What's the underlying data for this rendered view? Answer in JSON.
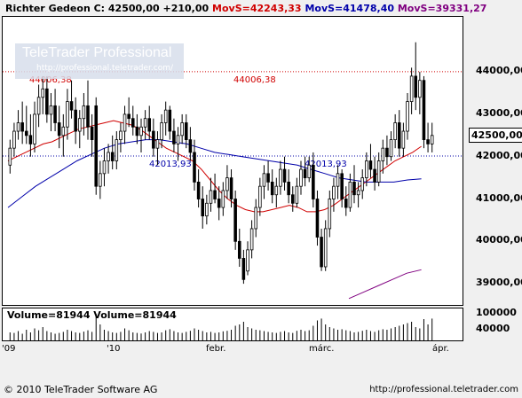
{
  "header": {
    "instrument": "Richter Gedeon C: 42500,00 +210,00",
    "mov1": "MovS=42243,33",
    "mov2": "MovS=41478,40",
    "mov3": "MovS=39331,27"
  },
  "watermark": {
    "title": "TeleTrader Professional",
    "url": "http://professional.teletrader.com/"
  },
  "volume_header": "Volume=81944  Volume=81944",
  "footer": {
    "copyright": "© 2010 TeleTrader Software AG",
    "url": "http://professional.teletrader.com"
  },
  "colors": {
    "up": "#ffffff",
    "down": "#000000",
    "mov1": "#d00000",
    "mov2": "#0000aa",
    "mov3": "#800080",
    "hline": "#d00000",
    "lline": "#0000aa"
  },
  "chart_data": {
    "type": "candlestick",
    "y_axis": {
      "ticks": [
        39000,
        40000,
        41000,
        42000,
        43000,
        44000
      ],
      "tick_labels": [
        "39000,00",
        "40000,00",
        "41000,00",
        "42000,00",
        "43000,00",
        "44000,00"
      ],
      "ylim": [
        38500,
        45300
      ]
    },
    "last_price": {
      "value": 42500,
      "label": "42500,00"
    },
    "x_axis": {
      "tick_labels": [
        "'09",
        "'10",
        "febr.",
        "márc.",
        "ápr."
      ]
    },
    "annotations": [
      {
        "type": "hline",
        "value": 44006.38,
        "label": "44006,38"
      },
      {
        "type": "hline",
        "value": 42013.93,
        "label": "42013,93"
      }
    ],
    "candles": [
      {
        "o": 41800,
        "h": 42400,
        "l": 41600,
        "c": 42200
      },
      {
        "o": 42200,
        "h": 42800,
        "l": 42000,
        "c": 42600
      },
      {
        "o": 42600,
        "h": 43100,
        "l": 42400,
        "c": 42800
      },
      {
        "o": 42800,
        "h": 43300,
        "l": 42300,
        "c": 42600
      },
      {
        "o": 42600,
        "h": 43200,
        "l": 42300,
        "c": 42500
      },
      {
        "o": 42500,
        "h": 43000,
        "l": 42000,
        "c": 42300
      },
      {
        "o": 42300,
        "h": 43300,
        "l": 42100,
        "c": 43000
      },
      {
        "o": 43000,
        "h": 43700,
        "l": 42700,
        "c": 43400
      },
      {
        "o": 43400,
        "h": 43900,
        "l": 43000,
        "c": 43600
      },
      {
        "o": 43600,
        "h": 43900,
        "l": 42800,
        "c": 43000
      },
      {
        "o": 43000,
        "h": 43500,
        "l": 42600,
        "c": 43200
      },
      {
        "o": 43200,
        "h": 43600,
        "l": 42600,
        "c": 42800
      },
      {
        "o": 42800,
        "h": 43200,
        "l": 42200,
        "c": 42500
      },
      {
        "o": 42500,
        "h": 43000,
        "l": 42000,
        "c": 42700
      },
      {
        "o": 42700,
        "h": 43600,
        "l": 42400,
        "c": 43300
      },
      {
        "o": 43300,
        "h": 43800,
        "l": 42900,
        "c": 43100
      },
      {
        "o": 43100,
        "h": 43400,
        "l": 42300,
        "c": 42600
      },
      {
        "o": 42600,
        "h": 43100,
        "l": 42200,
        "c": 42900
      },
      {
        "o": 42900,
        "h": 43500,
        "l": 42500,
        "c": 43200
      },
      {
        "o": 43200,
        "h": 43800,
        "l": 42400,
        "c": 42700
      },
      {
        "o": 42700,
        "h": 43000,
        "l": 42000,
        "c": 42400
      },
      {
        "o": 43200,
        "h": 43400,
        "l": 41100,
        "c": 41300
      },
      {
        "o": 41300,
        "h": 41900,
        "l": 41000,
        "c": 41600
      },
      {
        "o": 41600,
        "h": 42200,
        "l": 41300,
        "c": 41900
      },
      {
        "o": 41900,
        "h": 42300,
        "l": 41600,
        "c": 42100
      },
      {
        "o": 42100,
        "h": 42500,
        "l": 41700,
        "c": 41900
      },
      {
        "o": 41900,
        "h": 42600,
        "l": 41700,
        "c": 42400
      },
      {
        "o": 42400,
        "h": 42800,
        "l": 42100,
        "c": 42600
      },
      {
        "o": 42600,
        "h": 43200,
        "l": 42300,
        "c": 43000
      },
      {
        "o": 43000,
        "h": 43400,
        "l": 42700,
        "c": 42900
      },
      {
        "o": 42900,
        "h": 43200,
        "l": 42500,
        "c": 42700
      },
      {
        "o": 42700,
        "h": 43000,
        "l": 42300,
        "c": 42500
      },
      {
        "o": 42500,
        "h": 42900,
        "l": 42100,
        "c": 42700
      },
      {
        "o": 42700,
        "h": 43100,
        "l": 42400,
        "c": 42900
      },
      {
        "o": 42900,
        "h": 43200,
        "l": 42400,
        "c": 42600
      },
      {
        "o": 42600,
        "h": 42900,
        "l": 42000,
        "c": 42200
      },
      {
        "o": 42200,
        "h": 42600,
        "l": 41800,
        "c": 42400
      },
      {
        "o": 42400,
        "h": 43000,
        "l": 42200,
        "c": 42800
      },
      {
        "o": 42800,
        "h": 43300,
        "l": 42500,
        "c": 43100
      },
      {
        "o": 43100,
        "h": 43200,
        "l": 42400,
        "c": 42600
      },
      {
        "o": 42600,
        "h": 42900,
        "l": 42100,
        "c": 42300
      },
      {
        "o": 42300,
        "h": 42700,
        "l": 41900,
        "c": 42500
      },
      {
        "o": 42500,
        "h": 43000,
        "l": 42300,
        "c": 42800
      },
      {
        "o": 42800,
        "h": 43000,
        "l": 42200,
        "c": 42400
      },
      {
        "o": 42400,
        "h": 42700,
        "l": 41900,
        "c": 42100
      },
      {
        "o": 42100,
        "h": 42400,
        "l": 41200,
        "c": 41400
      },
      {
        "o": 41400,
        "h": 41700,
        "l": 40800,
        "c": 41000
      },
      {
        "o": 41000,
        "h": 41300,
        "l": 40300,
        "c": 40600
      },
      {
        "o": 40600,
        "h": 41100,
        "l": 40400,
        "c": 40900
      },
      {
        "o": 40900,
        "h": 41500,
        "l": 40700,
        "c": 41200
      },
      {
        "o": 41200,
        "h": 41600,
        "l": 40900,
        "c": 41000
      },
      {
        "o": 41000,
        "h": 41300,
        "l": 40500,
        "c": 40800
      },
      {
        "o": 40800,
        "h": 41400,
        "l": 40600,
        "c": 41200
      },
      {
        "o": 41200,
        "h": 41800,
        "l": 41000,
        "c": 41500
      },
      {
        "o": 41500,
        "h": 41700,
        "l": 40800,
        "c": 41000
      },
      {
        "o": 41000,
        "h": 41200,
        "l": 39800,
        "c": 40000
      },
      {
        "o": 40000,
        "h": 40300,
        "l": 39400,
        "c": 39600
      },
      {
        "o": 39600,
        "h": 39800,
        "l": 39000,
        "c": 39100
      },
      {
        "o": 39300,
        "h": 40000,
        "l": 39200,
        "c": 39800
      },
      {
        "o": 39800,
        "h": 40500,
        "l": 39600,
        "c": 40300
      },
      {
        "o": 40300,
        "h": 41000,
        "l": 40100,
        "c": 40800
      },
      {
        "o": 40800,
        "h": 41500,
        "l": 40600,
        "c": 41300
      },
      {
        "o": 41300,
        "h": 41800,
        "l": 41000,
        "c": 41600
      },
      {
        "o": 41600,
        "h": 41900,
        "l": 41200,
        "c": 41400
      },
      {
        "o": 41400,
        "h": 41700,
        "l": 40900,
        "c": 41100
      },
      {
        "o": 41100,
        "h": 41500,
        "l": 40800,
        "c": 41300
      },
      {
        "o": 41300,
        "h": 41900,
        "l": 41100,
        "c": 41700
      },
      {
        "o": 41700,
        "h": 42000,
        "l": 41200,
        "c": 41400
      },
      {
        "o": 41400,
        "h": 41700,
        "l": 40900,
        "c": 41100
      },
      {
        "o": 41100,
        "h": 41300,
        "l": 40700,
        "c": 40900
      },
      {
        "o": 40900,
        "h": 41500,
        "l": 40800,
        "c": 41300
      },
      {
        "o": 41300,
        "h": 41900,
        "l": 41100,
        "c": 41700
      },
      {
        "o": 41700,
        "h": 42000,
        "l": 41300,
        "c": 41500
      },
      {
        "o": 41500,
        "h": 42000,
        "l": 41400,
        "c": 41800
      },
      {
        "o": 41800,
        "h": 42100,
        "l": 40800,
        "c": 41000
      },
      {
        "o": 41000,
        "h": 41200,
        "l": 39900,
        "c": 40100
      },
      {
        "o": 40100,
        "h": 40300,
        "l": 39300,
        "c": 39400
      },
      {
        "o": 39400,
        "h": 40500,
        "l": 39300,
        "c": 40300
      },
      {
        "o": 40300,
        "h": 41200,
        "l": 40100,
        "c": 41000
      },
      {
        "o": 41000,
        "h": 41500,
        "l": 40700,
        "c": 41300
      },
      {
        "o": 41300,
        "h": 41800,
        "l": 41000,
        "c": 41600
      },
      {
        "o": 41600,
        "h": 41700,
        "l": 40800,
        "c": 41000
      },
      {
        "o": 41000,
        "h": 41300,
        "l": 40600,
        "c": 40800
      },
      {
        "o": 40800,
        "h": 41600,
        "l": 40700,
        "c": 41400
      },
      {
        "o": 41400,
        "h": 41800,
        "l": 40900,
        "c": 41100
      },
      {
        "o": 41100,
        "h": 41400,
        "l": 40800,
        "c": 41200
      },
      {
        "o": 41200,
        "h": 41700,
        "l": 41000,
        "c": 41500
      },
      {
        "o": 41500,
        "h": 42100,
        "l": 41300,
        "c": 41900
      },
      {
        "o": 41900,
        "h": 42300,
        "l": 41500,
        "c": 41700
      },
      {
        "o": 41700,
        "h": 42000,
        "l": 41200,
        "c": 41400
      },
      {
        "o": 41400,
        "h": 42100,
        "l": 41300,
        "c": 41900
      },
      {
        "o": 41900,
        "h": 42400,
        "l": 41600,
        "c": 42200
      },
      {
        "o": 42200,
        "h": 42500,
        "l": 41800,
        "c": 42000
      },
      {
        "o": 42000,
        "h": 42600,
        "l": 41900,
        "c": 42400
      },
      {
        "o": 42400,
        "h": 43000,
        "l": 42200,
        "c": 42800
      },
      {
        "o": 42800,
        "h": 43100,
        "l": 42000,
        "c": 42200
      },
      {
        "o": 42200,
        "h": 42800,
        "l": 42000,
        "c": 42600
      },
      {
        "o": 42600,
        "h": 43500,
        "l": 42400,
        "c": 43300
      },
      {
        "o": 43300,
        "h": 44100,
        "l": 43000,
        "c": 43900
      },
      {
        "o": 43900,
        "h": 44700,
        "l": 43100,
        "c": 43400
      },
      {
        "o": 43400,
        "h": 44000,
        "l": 43000,
        "c": 43800
      },
      {
        "o": 43800,
        "h": 43900,
        "l": 42200,
        "c": 42400
      },
      {
        "o": 42400,
        "h": 42800,
        "l": 42100,
        "c": 42300
      },
      {
        "o": 42300,
        "h": 42800,
        "l": 42100,
        "c": 42500
      }
    ],
    "series": [
      {
        "name": "MovS=42243,33",
        "values": [
          41900,
          42000,
          42100,
          42200,
          42300,
          42350,
          42450,
          42550,
          42650,
          42700,
          42750,
          42800,
          42850,
          42800,
          42750,
          42650,
          42500,
          42350,
          42200,
          42100,
          42000,
          41900,
          41700,
          41450,
          41200,
          41000,
          40850,
          40750,
          40700,
          40700,
          40750,
          40800,
          40850,
          40800,
          40700,
          40700,
          40750,
          40850,
          41000,
          41150,
          41300,
          41450,
          41600,
          41750,
          41900,
          42000,
          42100,
          42243
        ]
      },
      {
        "name": "MovS=41478,40",
        "values": [
          40800,
          41050,
          41300,
          41500,
          41700,
          41900,
          42050,
          42200,
          42300,
          42350,
          42400,
          42400,
          42350,
          42300,
          42200,
          42100,
          42050,
          42000,
          41950,
          41900,
          41850,
          41800,
          41700,
          41600,
          41500,
          41450,
          41400,
          41400,
          41400,
          41450,
          41478
        ]
      },
      {
        "name": "MovS=39331,27",
        "values": [
          38650,
          38800,
          38950,
          39100,
          39250,
          39331
        ]
      }
    ],
    "volume": {
      "y_axis": {
        "ticks": [
          40000,
          100000
        ],
        "tick_labels": [
          "40000",
          "100000"
        ],
        "ylim": [
          0,
          120000
        ]
      },
      "values": [
        30000,
        28000,
        35000,
        25000,
        40000,
        30000,
        45000,
        38000,
        50000,
        35000,
        30000,
        25000,
        28000,
        32000,
        40000,
        35000,
        30000,
        28000,
        33000,
        38000,
        32000,
        100000,
        60000,
        40000,
        35000,
        30000,
        28000,
        32000,
        45000,
        38000,
        30000,
        28000,
        26000,
        30000,
        35000,
        32000,
        28000,
        30000,
        38000,
        42000,
        35000,
        30000,
        28000,
        32000,
        36000,
        45000,
        40000,
        35000,
        30000,
        32000,
        28000,
        30000,
        34000,
        36000,
        40000,
        55000,
        60000,
        70000,
        50000,
        45000,
        40000,
        38000,
        35000,
        32000,
        30000,
        28000,
        32000,
        35000,
        30000,
        28000,
        36000,
        40000,
        35000,
        38000,
        55000,
        75000,
        82000,
        60000,
        50000,
        45000,
        40000,
        42000,
        38000,
        35000,
        30000,
        32000,
        36000,
        40000,
        35000,
        32000,
        38000,
        42000,
        40000,
        45000,
        50000,
        55000,
        60000,
        65000,
        70000,
        50000,
        45000,
        80000,
        60000,
        81944
      ]
    }
  }
}
